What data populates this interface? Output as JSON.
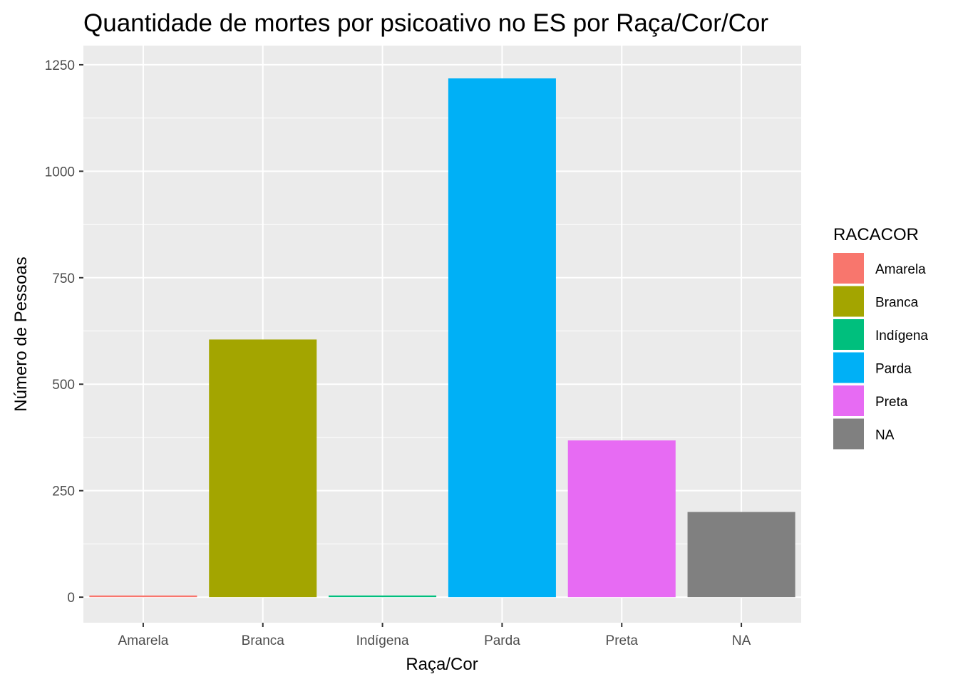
{
  "chart_data": {
    "type": "bar",
    "title": "Quantidade de mortes por psicoativo no ES por Raça/Cor/Cor",
    "xlabel": "Raça/Cor",
    "ylabel": "Número de Pessoas",
    "categories": [
      "Amarela",
      "Branca",
      "Indígena",
      "Parda",
      "Preta",
      "NA"
    ],
    "values": [
      4,
      605,
      4,
      1218,
      368,
      200
    ],
    "colors": [
      "#F8766D",
      "#A3A500",
      "#00BF7D",
      "#00B0F6",
      "#E76BF3",
      "#808080"
    ],
    "ylim": [
      -60,
      1295
    ],
    "yticks": [
      0,
      250,
      500,
      750,
      1000,
      1250
    ],
    "grid": true,
    "panel_background": "#EBEBEB",
    "legend": {
      "title": "RACACOR",
      "position": "right",
      "items": [
        "Amarela",
        "Branca",
        "Indígena",
        "Parda",
        "Preta",
        "NA"
      ]
    }
  }
}
